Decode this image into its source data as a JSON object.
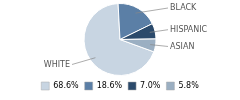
{
  "chart_data": {
    "type": "pie",
    "categories": [
      "WHITE",
      "BLACK",
      "HISPANIC",
      "ASIAN"
    ],
    "values": [
      68.6,
      18.6,
      7.0,
      5.8
    ],
    "value_labels": [
      "68.6%",
      "18.6%",
      "7.0%",
      "5.8%"
    ],
    "colors": [
      "#c8d5e2",
      "#5b7fa6",
      "#2b4a6b",
      "#9bafc2"
    ],
    "legend": "bottom"
  }
}
